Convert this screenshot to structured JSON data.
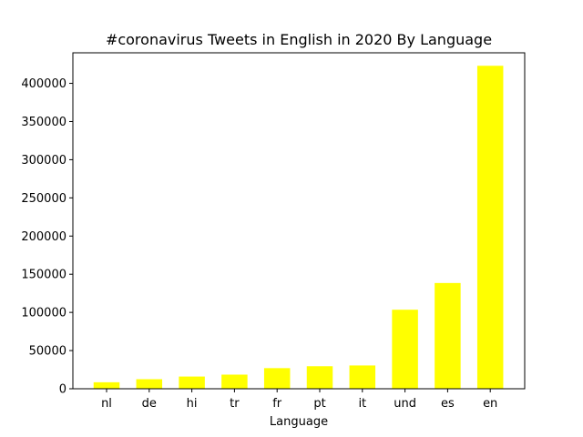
{
  "chart_data": {
    "type": "bar",
    "title": "#coronavirus Tweets in English in 2020 By Language",
    "xlabel": "Language",
    "ylabel": "",
    "categories": [
      "nl",
      "de",
      "hi",
      "tr",
      "fr",
      "pt",
      "it",
      "und",
      "es",
      "en"
    ],
    "values": [
      8500,
      12500,
      16000,
      18500,
      27000,
      29500,
      30500,
      103500,
      138500,
      423000
    ],
    "ylim": [
      0,
      440000
    ],
    "yticks": [
      0,
      50000,
      100000,
      150000,
      200000,
      250000,
      300000,
      350000,
      400000
    ],
    "bar_color": "#ffff00",
    "grid": false,
    "legend": false
  }
}
